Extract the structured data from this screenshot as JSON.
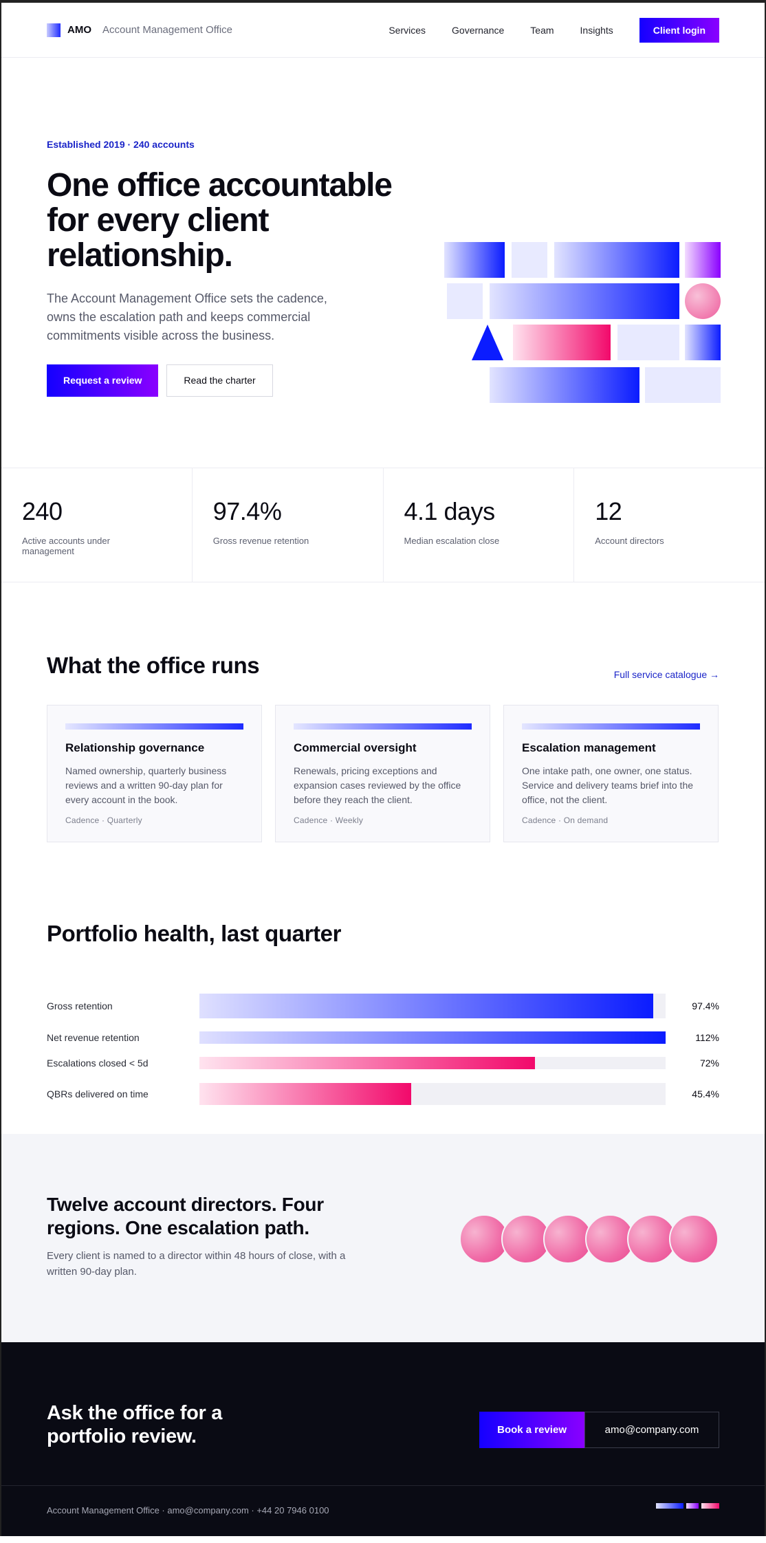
{
  "header": {
    "brand_name": "AMO",
    "brand_sub": "Account Management Office",
    "nav": [
      "Services",
      "Governance",
      "Team",
      "Insights"
    ],
    "login_label": "Client login"
  },
  "hero": {
    "eyebrow": "Established 2019 · 240 accounts",
    "title": "One office accountable for every client relationship.",
    "text": "The Account Management Office sets the cadence, owns the escalation path and keeps commercial commitments visible across the business.",
    "primary_cta": "Request a review",
    "secondary_cta": "Read the charter"
  },
  "stats": [
    {
      "value": "240",
      "label": "Active accounts under management"
    },
    {
      "value": "97.4%",
      "label": "Gross revenue retention"
    },
    {
      "value": "4.1 days",
      "label": "Median escalation close"
    },
    {
      "value": "12",
      "label": "Account directors"
    }
  ],
  "services": {
    "title": "What the office runs",
    "link": "Full service catalogue →",
    "cards": [
      {
        "title": "Relationship governance",
        "text": "Named ownership, quarterly business reviews and a written 90-day plan for every account in the book.",
        "meta": "Cadence · Quarterly"
      },
      {
        "title": "Commercial oversight",
        "text": "Renewals, pricing exceptions and expansion cases reviewed by the office before they reach the client.",
        "meta": "Cadence · Weekly"
      },
      {
        "title": "Escalation management",
        "text": "One intake path, one owner, one status. Service and delivery teams brief into the office, not the client.",
        "meta": "Cadence · On demand"
      }
    ]
  },
  "health": {
    "title": "Portfolio health, last quarter",
    "rows": [
      {
        "label": "Gross retention",
        "value": "97.4%",
        "fill": 0.974
      },
      {
        "label": "Net revenue retention",
        "value": "112%",
        "fill": 1.0
      },
      {
        "label": "Escalations closed < 5d",
        "value": "72%",
        "fill": 0.72
      },
      {
        "label": "QBRs delivered on time",
        "value": "45.4%",
        "fill": 0.454
      }
    ]
  },
  "directors": {
    "title": "Twelve account directors. Four regions. One escalation path.",
    "text": "Every client is named to a director within 48 hours of close, with a written 90-day plan."
  },
  "cta": {
    "title": "Ask the office for a portfolio review.",
    "primary": "Book a review",
    "email": "amo@company.com"
  },
  "footer": {
    "text": "Account Management Office · amo@company.com · +44 20 7946 0100"
  }
}
